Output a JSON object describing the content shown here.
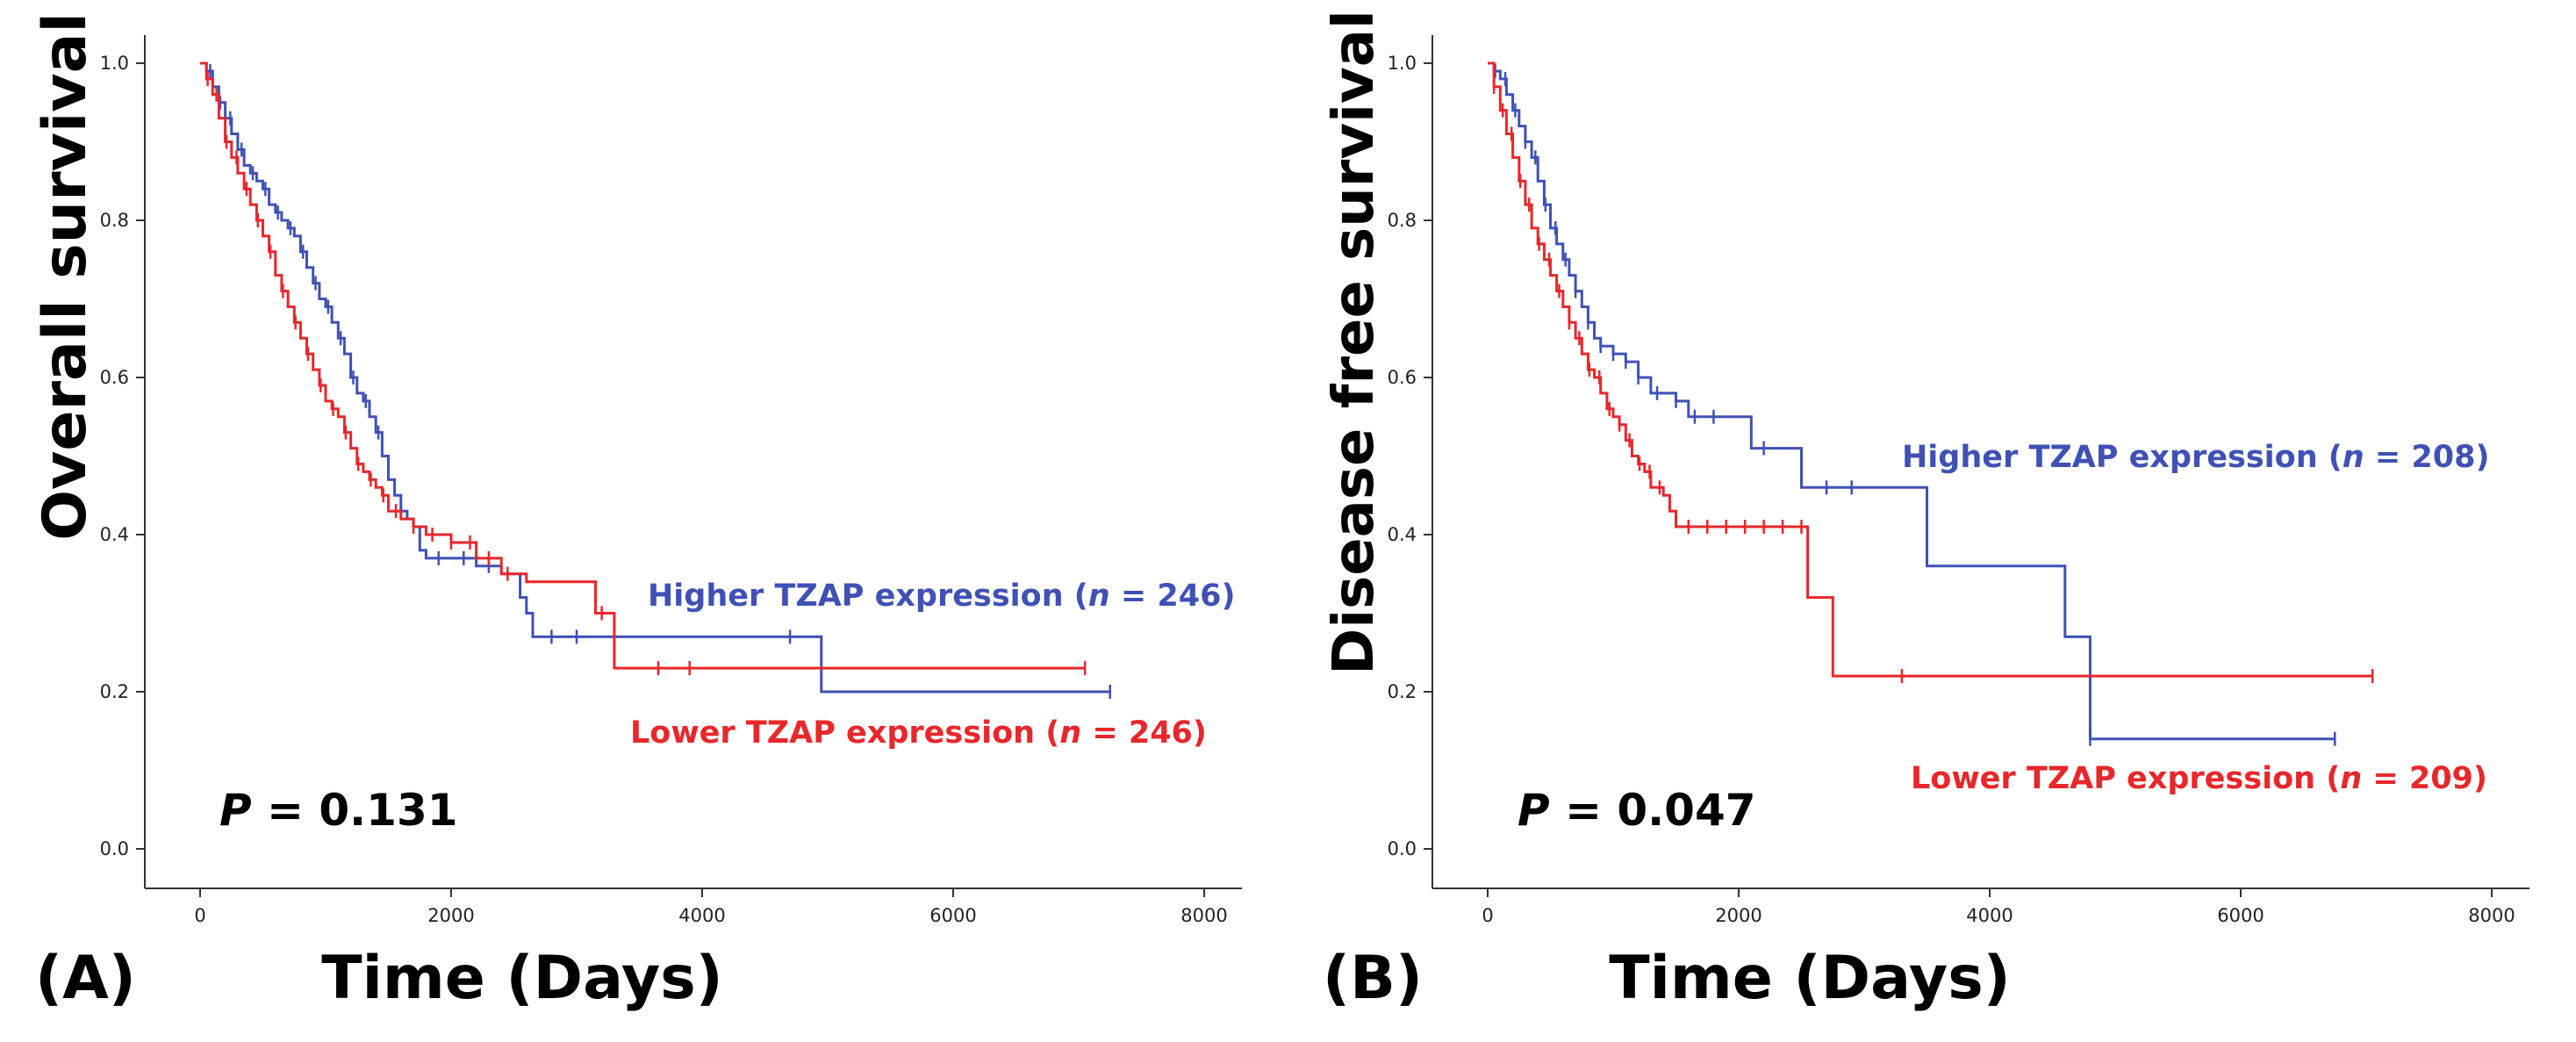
{
  "chart_data": [
    {
      "type": "line",
      "step": true,
      "panel_label": "(A)",
      "xlabel": "Time (Days)",
      "ylabel": "Overall survival",
      "xlim": [
        0,
        8000
      ],
      "ylim": [
        0,
        1.0
      ],
      "xticks": [
        0,
        2000,
        4000,
        6000,
        8000
      ],
      "yticks": [
        0.0,
        0.2,
        0.4,
        0.6,
        0.8,
        1.0
      ],
      "p_label": "P",
      "p_value": "= 0.131",
      "series": [
        {
          "label_pre": "Higher TZAP expression (",
          "label_n": "n",
          "label_post": " = 246)",
          "color": "#3f51b5",
          "x": [
            0,
            50,
            100,
            150,
            200,
            250,
            300,
            350,
            400,
            450,
            500,
            550,
            600,
            650,
            700,
            750,
            800,
            850,
            900,
            950,
            1000,
            1050,
            1100,
            1150,
            1200,
            1250,
            1300,
            1350,
            1400,
            1450,
            1500,
            1550,
            1600,
            1650,
            1700,
            1750,
            1800,
            2000,
            2200,
            2400,
            2550,
            2600,
            2650,
            2700,
            4950,
            7250
          ],
          "y": [
            1.0,
            0.99,
            0.97,
            0.95,
            0.93,
            0.91,
            0.89,
            0.87,
            0.86,
            0.85,
            0.84,
            0.82,
            0.81,
            0.8,
            0.79,
            0.78,
            0.76,
            0.74,
            0.72,
            0.7,
            0.69,
            0.67,
            0.65,
            0.63,
            0.6,
            0.58,
            0.57,
            0.55,
            0.53,
            0.5,
            0.47,
            0.45,
            0.43,
            0.42,
            0.41,
            0.38,
            0.37,
            0.37,
            0.36,
            0.35,
            0.32,
            0.3,
            0.27,
            0.27,
            0.2,
            0.2
          ],
          "censor_x": [
            80,
            160,
            240,
            330,
            420,
            520,
            620,
            720,
            820,
            920,
            1020,
            1120,
            1220,
            1320,
            1420,
            1600,
            1900,
            2100,
            2300,
            2800,
            3000,
            4700,
            7250
          ]
        },
        {
          "label_pre": "Lower TZAP expression (",
          "label_n": "n",
          "label_post": " = 246)",
          "color": "#e8272b",
          "x": [
            0,
            50,
            100,
            150,
            200,
            250,
            300,
            350,
            400,
            450,
            500,
            550,
            600,
            650,
            700,
            750,
            800,
            850,
            900,
            950,
            1000,
            1050,
            1100,
            1150,
            1200,
            1250,
            1300,
            1350,
            1400,
            1450,
            1500,
            1600,
            1700,
            1800,
            2000,
            2200,
            2400,
            2600,
            2800,
            3000,
            3150,
            3300,
            3600,
            7050
          ],
          "y": [
            1.0,
            0.98,
            0.96,
            0.93,
            0.9,
            0.88,
            0.86,
            0.84,
            0.82,
            0.8,
            0.78,
            0.76,
            0.73,
            0.71,
            0.69,
            0.67,
            0.65,
            0.63,
            0.61,
            0.59,
            0.57,
            0.56,
            0.55,
            0.53,
            0.51,
            0.49,
            0.48,
            0.47,
            0.46,
            0.45,
            0.43,
            0.42,
            0.41,
            0.4,
            0.39,
            0.37,
            0.35,
            0.34,
            0.34,
            0.34,
            0.3,
            0.23,
            0.23,
            0.23
          ],
          "censor_x": [
            60,
            130,
            210,
            290,
            370,
            460,
            560,
            660,
            760,
            860,
            960,
            1060,
            1160,
            1260,
            1360,
            1460,
            1560,
            1700,
            1850,
            2000,
            2150,
            2300,
            2450,
            3200,
            3650,
            3900,
            7050
          ]
        }
      ]
    },
    {
      "type": "line",
      "step": true,
      "panel_label": "(B)",
      "xlabel": "Time (Days)",
      "ylabel": "Disease free survival",
      "xlim": [
        0,
        8000
      ],
      "ylim": [
        0,
        1.0
      ],
      "xticks": [
        0,
        2000,
        4000,
        6000,
        8000
      ],
      "yticks": [
        0.0,
        0.2,
        0.4,
        0.6,
        0.8,
        1.0
      ],
      "p_label": "P",
      "p_value": "= 0.047",
      "series": [
        {
          "label_pre": "Higher TZAP expression (",
          "label_n": "n",
          "label_post": " = 208)",
          "color": "#3f51b5",
          "x": [
            0,
            50,
            100,
            150,
            200,
            250,
            300,
            350,
            400,
            450,
            500,
            550,
            600,
            650,
            700,
            750,
            800,
            850,
            900,
            1000,
            1100,
            1200,
            1300,
            1400,
            1500,
            1600,
            1700,
            2000,
            2100,
            2500,
            3500,
            4600,
            4800,
            6750
          ],
          "y": [
            1.0,
            0.99,
            0.98,
            0.96,
            0.94,
            0.92,
            0.9,
            0.88,
            0.85,
            0.82,
            0.79,
            0.77,
            0.75,
            0.73,
            0.71,
            0.69,
            0.67,
            0.65,
            0.64,
            0.63,
            0.62,
            0.6,
            0.58,
            0.58,
            0.57,
            0.55,
            0.55,
            0.55,
            0.51,
            0.46,
            0.36,
            0.27,
            0.14,
            0.14
          ],
          "censor_x": [
            60,
            140,
            220,
            300,
            380,
            460,
            540,
            620,
            700,
            800,
            900,
            1000,
            1100,
            1200,
            1350,
            1500,
            1650,
            1800,
            2200,
            2700,
            2900,
            4800,
            6750
          ]
        },
        {
          "label_pre": "Lower TZAP expression (",
          "label_n": "n",
          "label_post": " = 209)",
          "color": "#e8272b",
          "x": [
            0,
            50,
            100,
            150,
            200,
            250,
            300,
            350,
            400,
            450,
            500,
            550,
            600,
            650,
            700,
            750,
            800,
            850,
            900,
            950,
            1000,
            1050,
            1100,
            1150,
            1200,
            1250,
            1300,
            1350,
            1400,
            1450,
            1500,
            2500,
            2550,
            2750,
            7050
          ],
          "y": [
            1.0,
            0.97,
            0.94,
            0.91,
            0.88,
            0.85,
            0.82,
            0.79,
            0.77,
            0.75,
            0.73,
            0.71,
            0.69,
            0.67,
            0.65,
            0.63,
            0.61,
            0.6,
            0.58,
            0.56,
            0.55,
            0.54,
            0.52,
            0.5,
            0.49,
            0.48,
            0.46,
            0.46,
            0.45,
            0.43,
            0.41,
            0.41,
            0.32,
            0.22,
            0.22
          ],
          "censor_x": [
            50,
            120,
            190,
            260,
            330,
            410,
            490,
            570,
            650,
            730,
            810,
            890,
            970,
            1050,
            1130,
            1210,
            1290,
            1370,
            1600,
            1750,
            1900,
            2050,
            2200,
            2350,
            2500,
            3300,
            7050
          ]
        }
      ]
    }
  ]
}
